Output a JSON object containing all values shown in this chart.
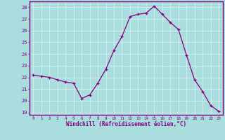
{
  "x": [
    0,
    1,
    2,
    3,
    4,
    5,
    6,
    7,
    8,
    9,
    10,
    11,
    12,
    13,
    14,
    15,
    16,
    17,
    18,
    19,
    20,
    21,
    22,
    23
  ],
  "y": [
    22.2,
    22.1,
    22.0,
    21.8,
    21.6,
    21.5,
    20.2,
    20.5,
    21.5,
    22.7,
    24.3,
    25.5,
    27.2,
    27.4,
    27.5,
    28.1,
    27.4,
    26.7,
    26.1,
    23.9,
    21.8,
    20.8,
    19.6,
    19.1
  ],
  "line_color": "#800080",
  "marker": "+",
  "bg_color": "#aadddd",
  "grid_color": "#cceeee",
  "xlabel": "Windchill (Refroidissement éolien,°C)",
  "xlabel_color": "#800080",
  "tick_color": "#800080",
  "ylim": [
    18.8,
    28.5
  ],
  "xlim": [
    -0.5,
    23.5
  ],
  "yticks": [
    19,
    20,
    21,
    22,
    23,
    24,
    25,
    26,
    27,
    28
  ],
  "xticks": [
    0,
    1,
    2,
    3,
    4,
    5,
    6,
    7,
    8,
    9,
    10,
    11,
    12,
    13,
    14,
    15,
    16,
    17,
    18,
    19,
    20,
    21,
    22,
    23
  ],
  "spine_color": "#800080"
}
